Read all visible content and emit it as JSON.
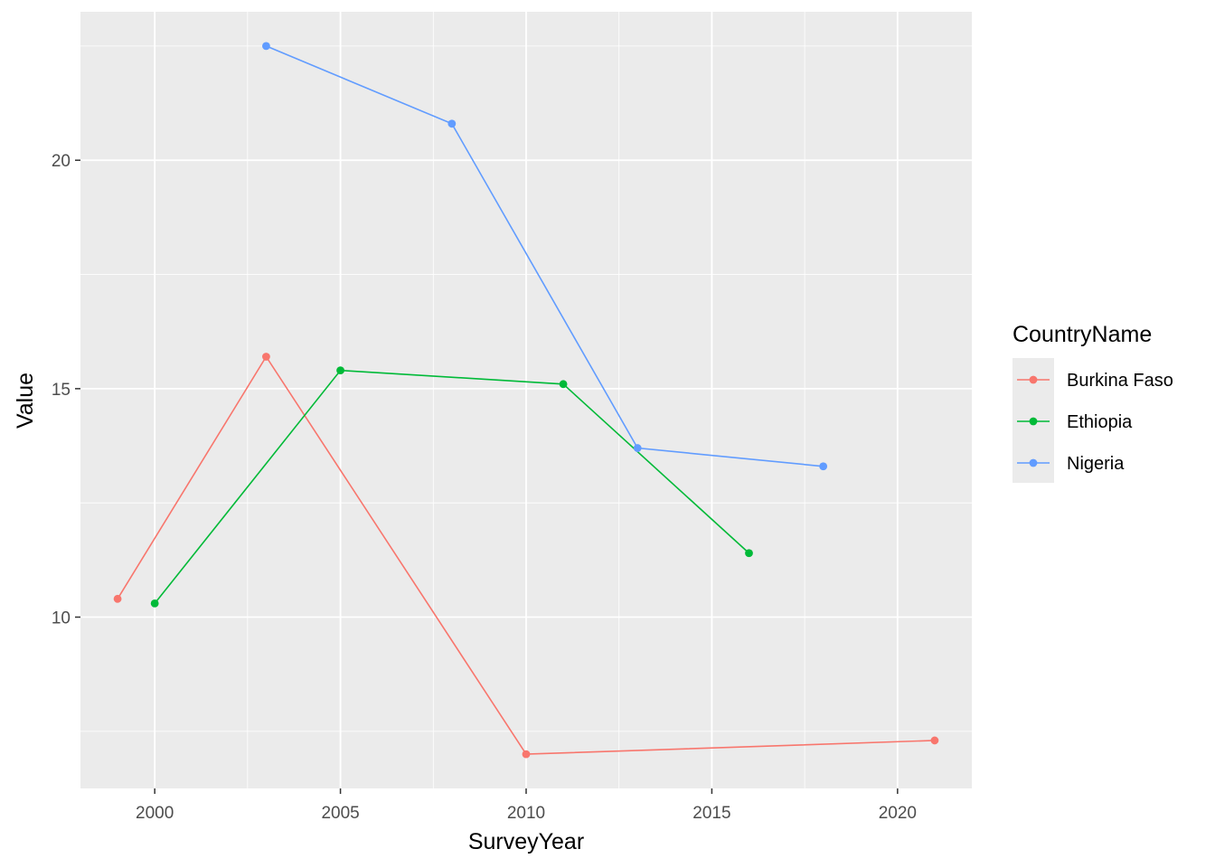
{
  "chart_data": {
    "type": "line",
    "title": "",
    "xlabel": "SurveyYear",
    "ylabel": "Value",
    "xlim": [
      1998.0,
      2022.0
    ],
    "ylim": [
      6.25,
      23.25
    ],
    "x_ticks": [
      2000,
      2005,
      2010,
      2015,
      2020
    ],
    "y_ticks": [
      10,
      15,
      20
    ],
    "grid": true,
    "legend": {
      "title": "CountryName",
      "placement": "right"
    },
    "series": [
      {
        "name": "Burkina Faso",
        "color": "#F8766D",
        "x": [
          1999,
          2003,
          2010,
          2021
        ],
        "y": [
          10.4,
          15.7,
          7.0,
          7.3
        ]
      },
      {
        "name": "Ethiopia",
        "color": "#00BA38",
        "x": [
          2000,
          2005,
          2011,
          2016
        ],
        "y": [
          10.3,
          15.4,
          15.1,
          11.4
        ]
      },
      {
        "name": "Nigeria",
        "color": "#619CFF",
        "x": [
          2003,
          2008,
          2013,
          2018
        ],
        "y": [
          22.5,
          20.8,
          13.7,
          13.3
        ]
      }
    ]
  }
}
